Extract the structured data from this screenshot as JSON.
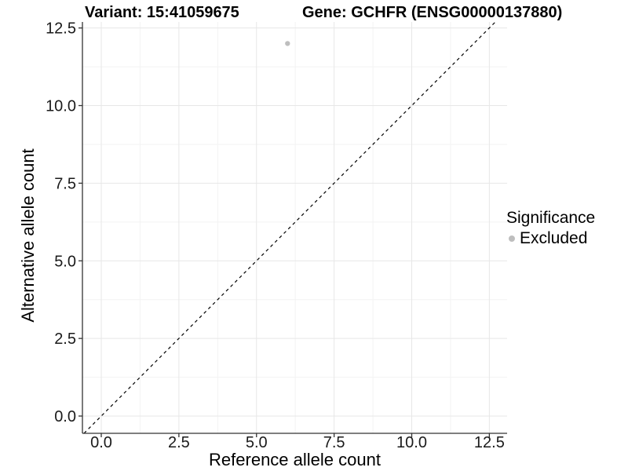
{
  "chart_data": {
    "type": "scatter",
    "title_left": "Variant: 15:41059675",
    "title_right": "Gene: GCHFR (ENSG00000137880)",
    "xlabel": "Reference allele count",
    "ylabel": "Alternative allele count",
    "x_ticks": {
      "values": [
        0,
        2.5,
        5,
        7.5,
        10,
        12.5
      ],
      "labels": [
        "0.0",
        "2.5",
        "5.0",
        "7.5",
        "10.0",
        "12.5"
      ]
    },
    "y_ticks": {
      "values": [
        0,
        2.5,
        5,
        7.5,
        10,
        12.5
      ],
      "labels": [
        "0.0",
        "2.5",
        "5.0",
        "7.5",
        "10.0",
        "12.5"
      ]
    },
    "minor_tick_values": [
      1.25,
      3.75,
      6.25,
      8.75,
      11.25
    ],
    "xlim": [
      -0.6,
      13.1
    ],
    "ylim": [
      -0.55,
      12.7
    ],
    "grid": "major and minor, light gray on white panel",
    "points": [
      {
        "x": 6,
        "y": 12,
        "series": "Excluded"
      }
    ],
    "reference_line": {
      "type": "identity",
      "slope": 1,
      "intercept": 0,
      "style": "dashed",
      "color": "#000000"
    },
    "legend": {
      "title": "Significance",
      "position": "right",
      "entries": [
        {
          "label": "Excluded",
          "color": "#bebebe"
        }
      ]
    },
    "colors": {
      "point": "#bebebe",
      "axis_line": "#333333",
      "tick_text": "#1a1a1a",
      "grid_major": "#e7e7e7",
      "grid_minor": "#f3f3f3",
      "background": "#ffffff"
    }
  }
}
